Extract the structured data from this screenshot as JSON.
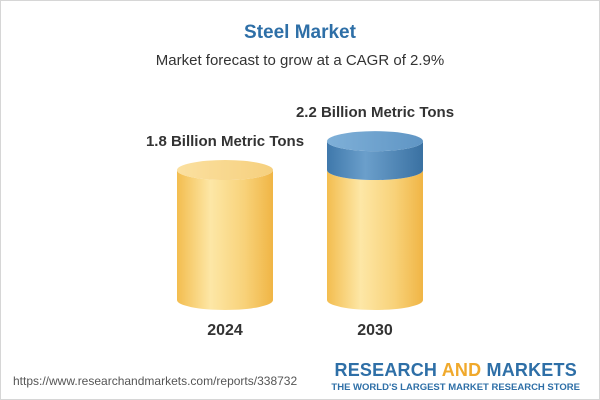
{
  "title": "Steel Market",
  "subtitle": "Market forecast to grow at a CAGR of 2.9%",
  "footer": {
    "url": "https://www.researchandmarkets.com/reports/338732",
    "brand_part1": "RESEARCH",
    "brand_part2": "AND",
    "brand_part3": "MARKETS",
    "tagline": "THE WORLD'S LARGEST MARKET RESEARCH STORE"
  },
  "colors": {
    "base": "#f5c55e",
    "base_light": "#fde6a4",
    "growth": "#4a86ba",
    "growth_light": "#7fb0d8",
    "title": "#2e6fa7"
  },
  "chart_data": {
    "type": "bar",
    "categories": [
      "2024",
      "2030"
    ],
    "values": [
      1.8,
      2.2
    ],
    "unit": "Billion Metric Tons",
    "data_labels": [
      "1.8 Billion Metric Tons",
      "2.2 Billion Metric Tons"
    ],
    "title": "Steel Market",
    "subtitle": "Market forecast to grow at a CAGR of 2.9%",
    "xlabel": "",
    "ylabel": "",
    "grid": false,
    "legend": "none"
  }
}
